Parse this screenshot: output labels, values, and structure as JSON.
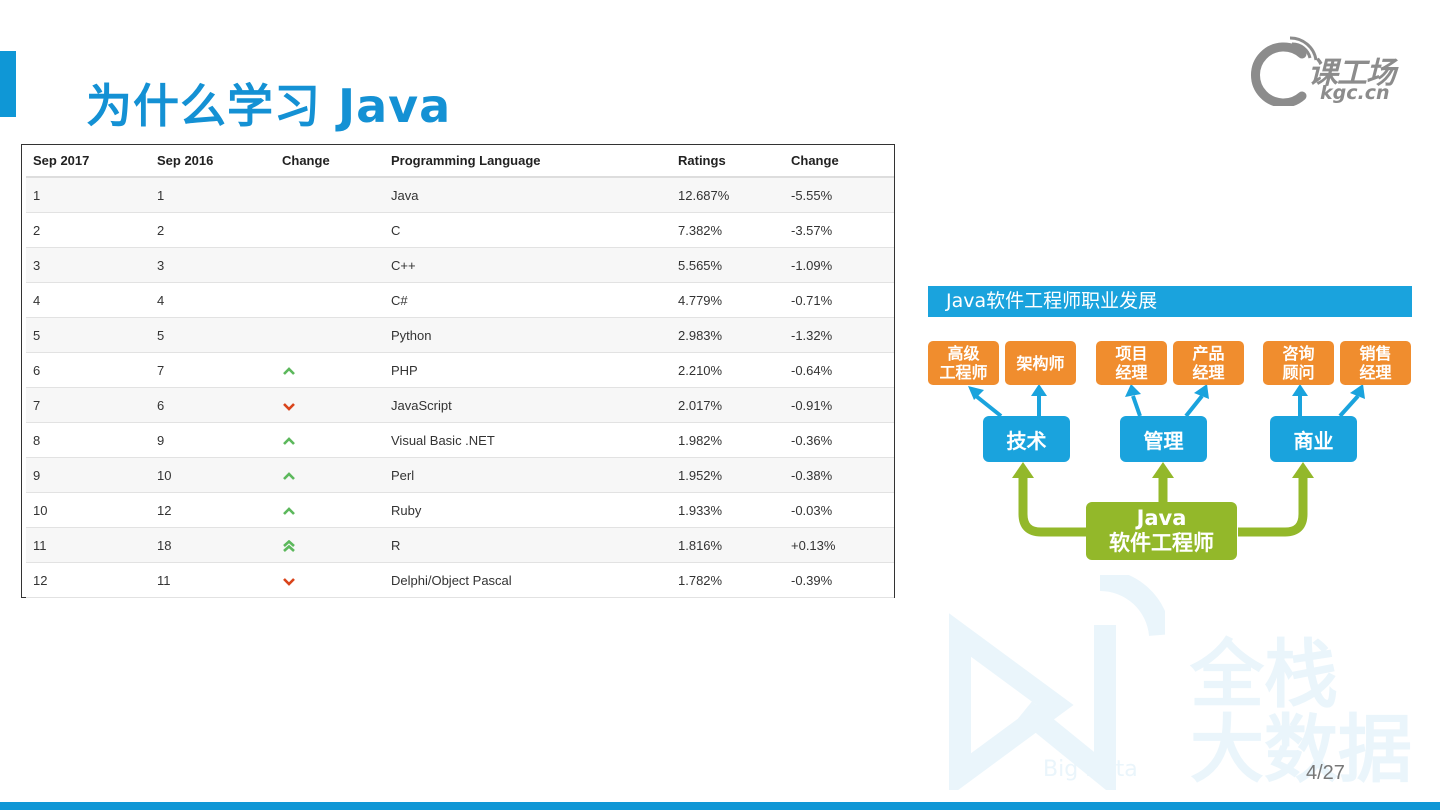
{
  "slide": {
    "title": "为什么学习 Java",
    "page_number": "4/27",
    "accent_color": "#0f97d6"
  },
  "logo": {
    "main": "课工场",
    "sub": "kgc.cn"
  },
  "ranking_table": {
    "headers": [
      "Sep 2017",
      "Sep 2016",
      "Change",
      "Programming Language",
      "Ratings",
      "Change"
    ],
    "rows": [
      {
        "sep2017": "1",
        "sep2016": "1",
        "trend": "none",
        "language": "Java",
        "rating": "12.687%",
        "change": "-5.55%"
      },
      {
        "sep2017": "2",
        "sep2016": "2",
        "trend": "none",
        "language": "C",
        "rating": "7.382%",
        "change": "-3.57%"
      },
      {
        "sep2017": "3",
        "sep2016": "3",
        "trend": "none",
        "language": "C++",
        "rating": "5.565%",
        "change": "-1.09%"
      },
      {
        "sep2017": "4",
        "sep2016": "4",
        "trend": "none",
        "language": "C#",
        "rating": "4.779%",
        "change": "-0.71%"
      },
      {
        "sep2017": "5",
        "sep2016": "5",
        "trend": "none",
        "language": "Python",
        "rating": "2.983%",
        "change": "-1.32%"
      },
      {
        "sep2017": "6",
        "sep2016": "7",
        "trend": "up",
        "language": "PHP",
        "rating": "2.210%",
        "change": "-0.64%"
      },
      {
        "sep2017": "7",
        "sep2016": "6",
        "trend": "down",
        "language": "JavaScript",
        "rating": "2.017%",
        "change": "-0.91%"
      },
      {
        "sep2017": "8",
        "sep2016": "9",
        "trend": "up",
        "language": "Visual Basic .NET",
        "rating": "1.982%",
        "change": "-0.36%"
      },
      {
        "sep2017": "9",
        "sep2016": "10",
        "trend": "up",
        "language": "Perl",
        "rating": "1.952%",
        "change": "-0.38%"
      },
      {
        "sep2017": "10",
        "sep2016": "12",
        "trend": "up",
        "language": "Ruby",
        "rating": "1.933%",
        "change": "-0.03%"
      },
      {
        "sep2017": "11",
        "sep2016": "18",
        "trend": "double-up",
        "language": "R",
        "rating": "1.816%",
        "change": "+0.13%"
      },
      {
        "sep2017": "12",
        "sep2016": "11",
        "trend": "down",
        "language": "Delphi/Object Pascal",
        "rating": "1.782%",
        "change": "-0.39%"
      }
    ],
    "trend_colors": {
      "up": "#5cb85c",
      "down": "#d9441b"
    }
  },
  "career_diagram": {
    "title": "Java软件工程师职业发展",
    "core": {
      "line1": "Java",
      "line2": "软件工程师"
    },
    "tracks": [
      {
        "name": "技术",
        "roles": [
          {
            "line1": "高级",
            "line2": "工程师"
          },
          {
            "line1": "架构师",
            "line2": ""
          }
        ]
      },
      {
        "name": "管理",
        "roles": [
          {
            "line1": "项目",
            "line2": "经理"
          },
          {
            "line1": "产品",
            "line2": "经理"
          }
        ]
      },
      {
        "name": "商业",
        "roles": [
          {
            "line1": "咨询",
            "line2": "顾问"
          },
          {
            "line1": "销售",
            "line2": "经理"
          }
        ]
      }
    ],
    "colors": {
      "role": "#f08d2e",
      "track": "#1aa3dd",
      "core": "#93b82a"
    }
  },
  "watermark": {
    "line1": "全栈",
    "line2": "大数据",
    "caption": "Big Data"
  }
}
